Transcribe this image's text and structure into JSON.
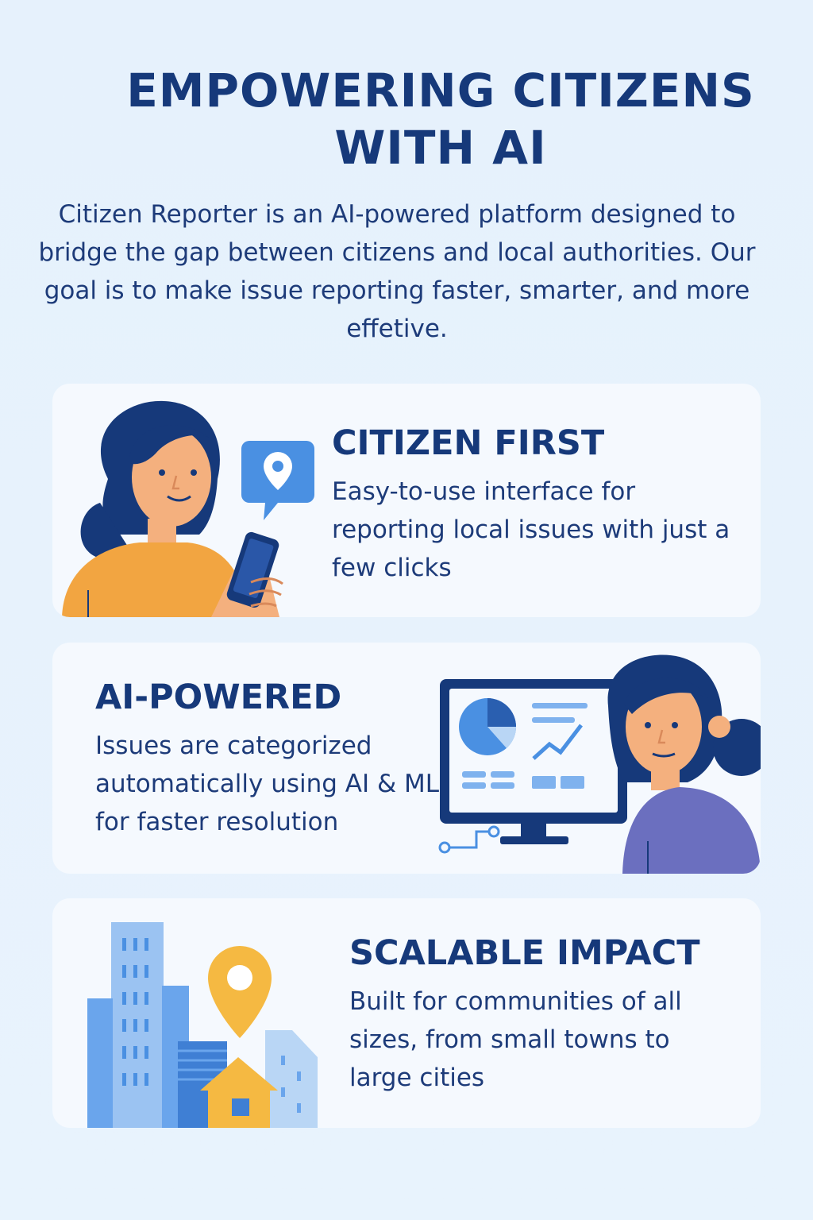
{
  "header": {
    "title": "EMPOWERING CITIZENS WITH AI",
    "intro": "Citizen Reporter is an AI-powered platform designed to bridge the gap between citizens and local authorities. Our goal is to make issue reporting faster, smarter, and more effetive."
  },
  "features": [
    {
      "title": "CITIZEN FIRST",
      "description": "Easy-to-use interface for reporting local issues with just a few clicks",
      "illustration": "woman-with-phone-and-location-pin-icon"
    },
    {
      "title": "AI-POWERED",
      "description": "Issues are categorized automatically using AI & ML for faster resolution",
      "illustration": "woman-with-analytics-monitor-icon"
    },
    {
      "title": "SCALABLE IMPACT",
      "description": "Built for communities of all sizes, from small towns to large cities",
      "illustration": "city-buildings-with-location-pin-icon"
    }
  ],
  "colors": {
    "background": "#e6f1fc",
    "card": "#f5f9fe",
    "heading": "#16397a",
    "accent_blue": "#4a90e2",
    "accent_orange": "#f2a541",
    "accent_yellow": "#f5b942",
    "accent_purple": "#6b6fbf"
  }
}
